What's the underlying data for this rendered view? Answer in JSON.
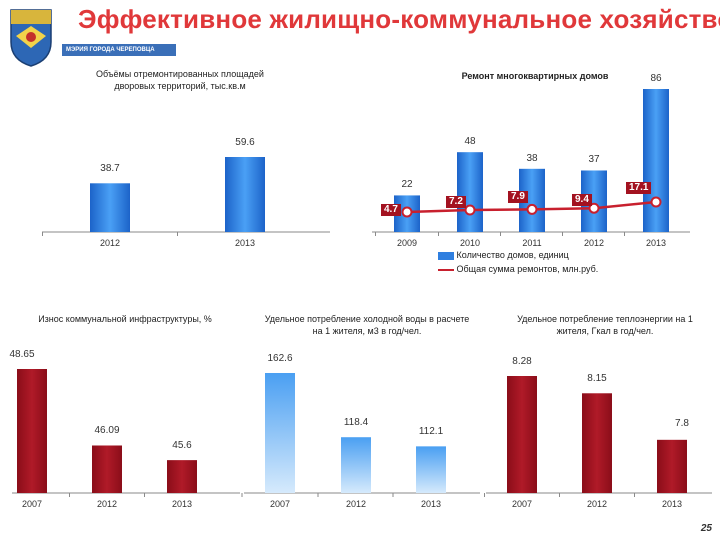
{
  "header": {
    "title": "Эффективное жилищно-коммунальное хозяйство",
    "subtitle": "МЭРИЯ ГОРОДА ЧЕРЕПОВЦА"
  },
  "page_number": "25",
  "colors": {
    "blue": "#2f7fe0",
    "blue_light": "#8fc3f5",
    "red": "#a31220",
    "title": "#e0383a"
  },
  "chart_data": [
    {
      "type": "bar",
      "title": "Объёмы отремонтированных площадей дворовых территорий, тыс.кв.м",
      "categories": [
        "2012",
        "2013"
      ],
      "values": [
        38.7,
        59.6
      ],
      "value_labels": [
        "38.7",
        "59.6"
      ],
      "color": "blue"
    },
    {
      "type": "bar+line",
      "title": "Ремонт многоквартирных домов",
      "categories": [
        "2009",
        "2010",
        "2011",
        "2012",
        "2013"
      ],
      "series": [
        {
          "name": "Количество домов, единиц",
          "type": "bar",
          "values": [
            22,
            48,
            38,
            37,
            86
          ],
          "value_labels": [
            "22",
            "48",
            "38",
            "37",
            "86"
          ]
        },
        {
          "name": "Общая сумма ремонтов, млн.руб.",
          "type": "line",
          "values": [
            4.7,
            7.2,
            7.9,
            9.4,
            17.1
          ],
          "value_labels": [
            "4.7",
            "7.2",
            "7.9",
            "9.4",
            "17.1"
          ]
        }
      ]
    },
    {
      "type": "bar",
      "title": "Износ коммунальной инфраструктуры, %",
      "categories": [
        "2007",
        "2012",
        "2013"
      ],
      "values": [
        48.65,
        46.09,
        45.6
      ],
      "value_labels": [
        "48.65",
        "46.09",
        "45.6"
      ],
      "color": "red"
    },
    {
      "type": "bar",
      "title": "Удельное потребление холодной воды в расчете на 1 жителя, м3 в год/чел.",
      "categories": [
        "2007",
        "2012",
        "2013"
      ],
      "values": [
        162.6,
        118.4,
        112.1
      ],
      "value_labels": [
        "162.6",
        "118.4",
        "112.1"
      ],
      "color": "blue_light"
    },
    {
      "type": "bar",
      "title": "Удельное потребление теплоэнергии на 1 жителя, Гкал в год/чел.",
      "categories": [
        "2007",
        "2012",
        "2013"
      ],
      "values": [
        8.28,
        8.15,
        7.8
      ],
      "value_labels": [
        "8.28",
        "8.15",
        "7.8"
      ],
      "color": "red"
    }
  ]
}
